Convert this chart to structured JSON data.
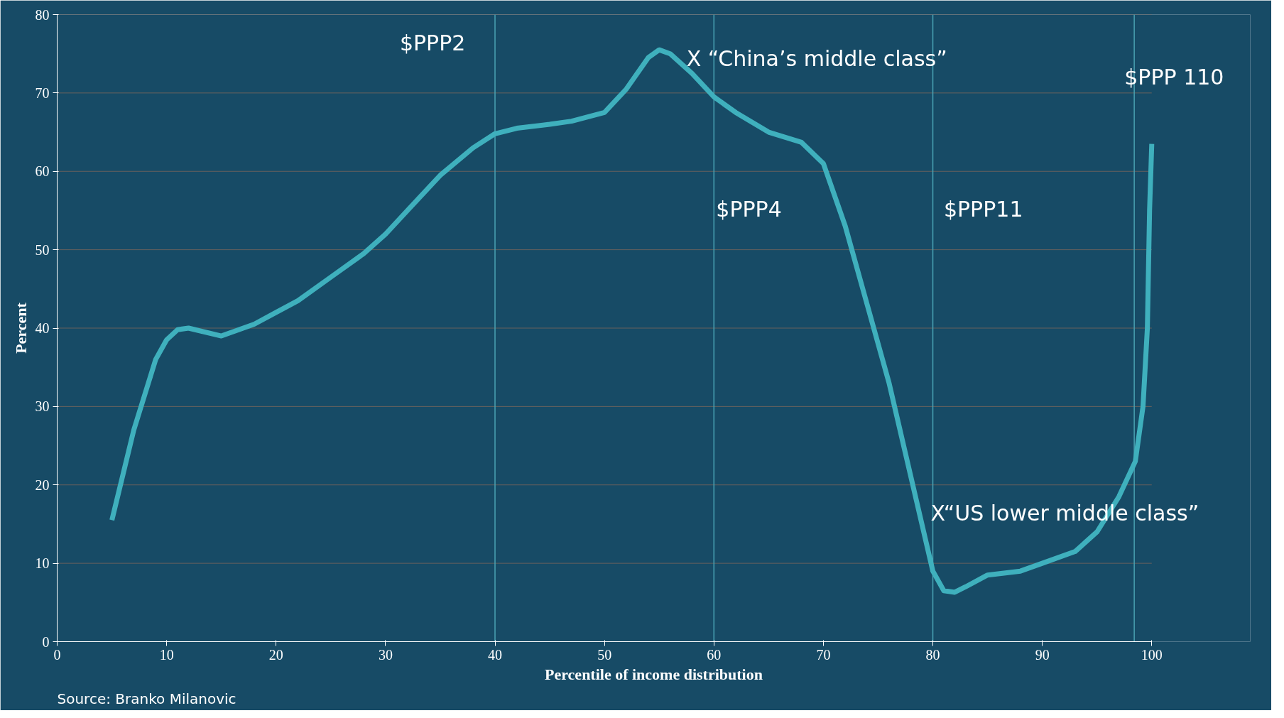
{
  "chart_data": {
    "type": "line",
    "xlabel": "Percentile of income distribution",
    "ylabel": "Percent",
    "x": [
      5,
      7,
      9,
      10,
      11,
      12,
      15,
      18,
      20,
      22,
      25,
      28,
      30,
      32,
      35,
      38,
      40,
      42,
      45,
      47,
      50,
      52,
      54,
      55,
      56,
      58,
      60,
      62,
      65,
      68,
      70,
      72,
      74,
      76,
      78,
      80,
      81,
      82,
      83,
      85,
      88,
      90,
      93,
      95,
      97,
      98.5,
      99.2,
      99.6,
      99.8,
      100
    ],
    "series": [
      {
        "color": "#3fb0bd",
        "values": [
          15.5,
          27,
          36,
          38.5,
          39.8,
          40,
          39,
          40.5,
          42,
          43.5,
          46.5,
          49.5,
          52,
          55,
          59.5,
          63,
          64.8,
          65.5,
          66,
          66.4,
          67.5,
          70.5,
          74.5,
          75.5,
          75,
          72.5,
          69.5,
          67.5,
          65,
          63.7,
          61,
          53,
          43,
          33,
          21,
          9,
          6.5,
          6.3,
          7,
          8.5,
          9,
          10,
          11.5,
          14,
          18.5,
          23,
          30,
          40,
          55,
          63.5
        ]
      }
    ],
    "xlim": [
      0,
      100
    ],
    "xticks": [
      0,
      10,
      20,
      30,
      40,
      50,
      60,
      70,
      80,
      90,
      100
    ],
    "ylim": [
      0,
      80
    ],
    "yticks": [
      0,
      10,
      20,
      30,
      40,
      50,
      60,
      70,
      80
    ],
    "grid": "y",
    "marker": "none",
    "line_style": "solid",
    "ref_lines": [
      {
        "axis": "x",
        "value": 40,
        "color": "#4aa3b3"
      },
      {
        "axis": "x",
        "value": 60,
        "color": "#4aa3b3"
      },
      {
        "axis": "x",
        "value": 80,
        "color": "#4aa3b3"
      },
      {
        "axis": "x",
        "value": 98.4,
        "color": "#4aa3b3"
      }
    ],
    "annotations": [
      "$PPP2",
      "$PPP4",
      "$PPP11",
      "$PPP 110",
      "X “China’s middle class”",
      "X“US lower middle class”",
      "Source: Branko Milanovic"
    ]
  }
}
